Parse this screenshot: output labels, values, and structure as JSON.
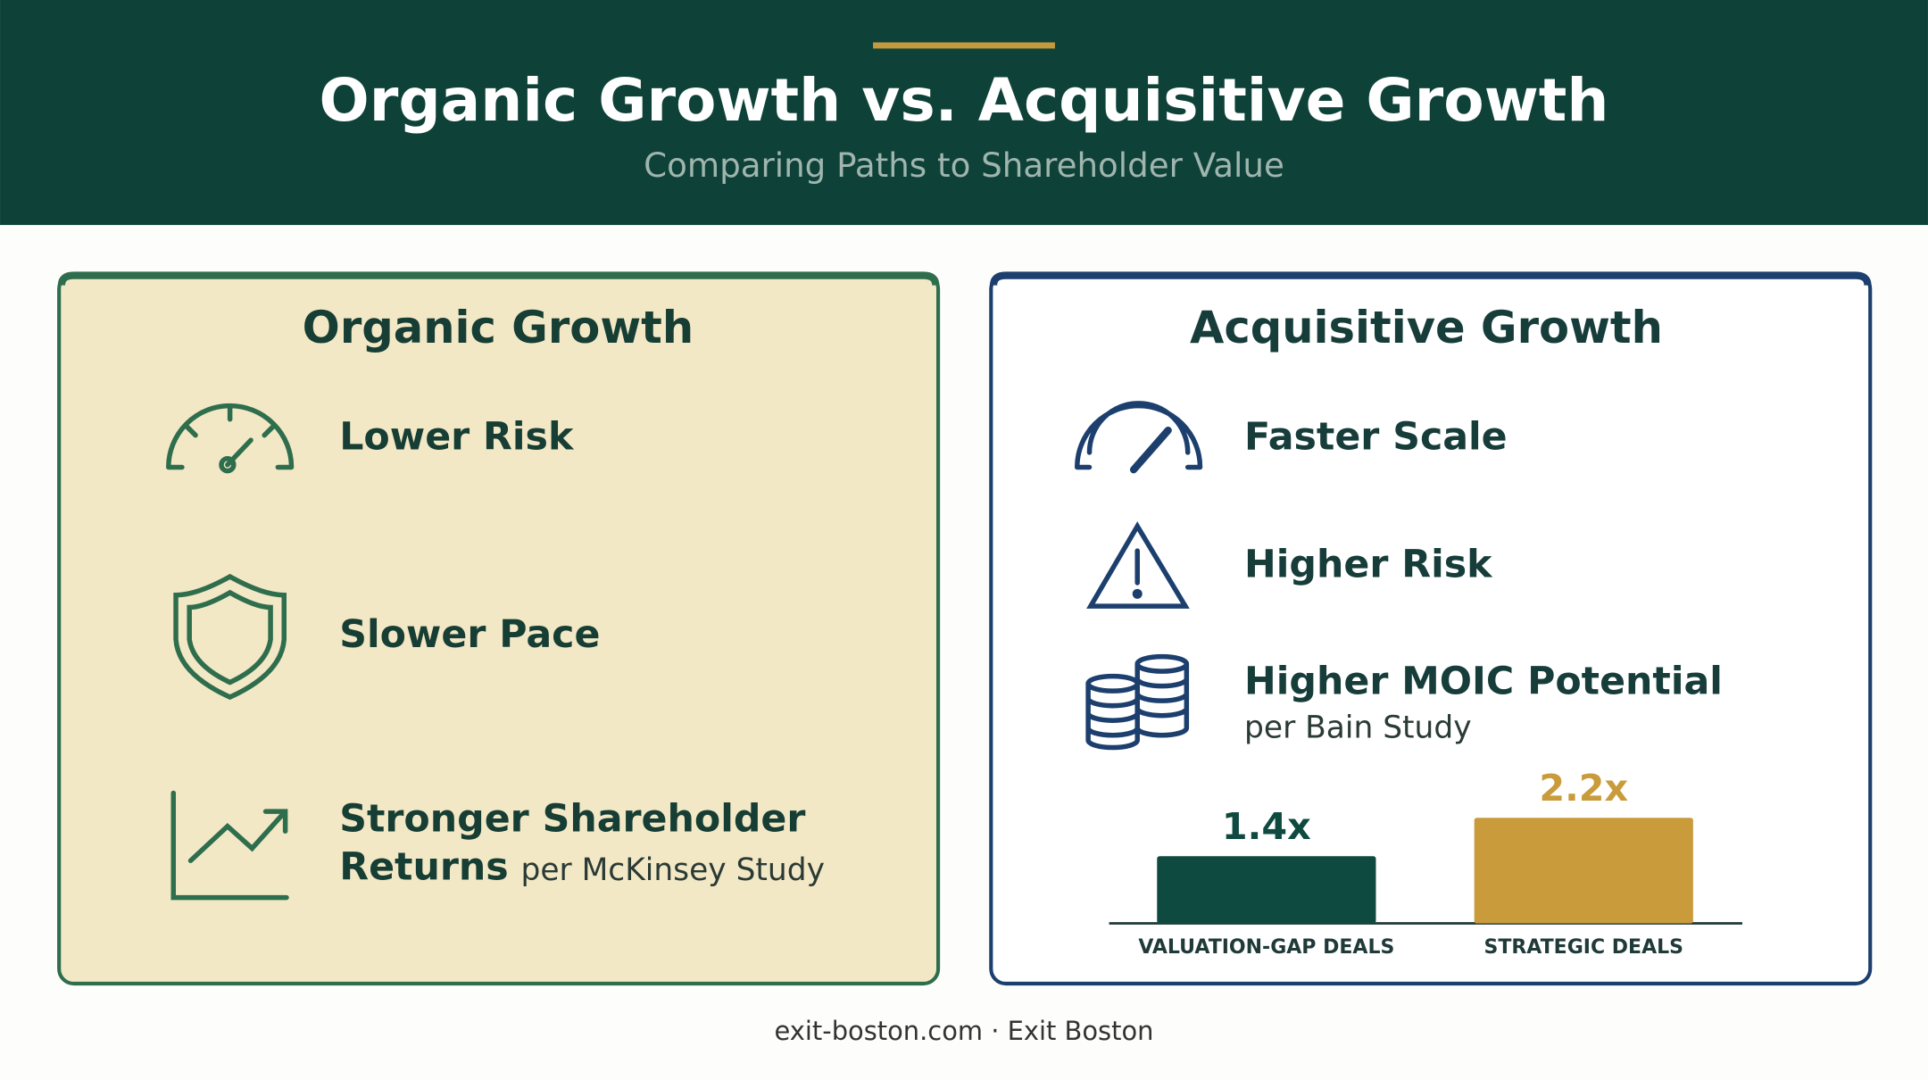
{
  "header": {
    "title": "Organic Growth vs. Acquisitive Growth",
    "subtitle": "Comparing Paths to Shareholder Value"
  },
  "panels": [
    {
      "title": "Organic Growth",
      "items": [
        {
          "label_lines": [
            "Lower Risk"
          ]
        },
        {
          "label_lines": [
            "Slower Pace"
          ]
        },
        {
          "label_lines": [
            "Stronger Shareholder",
            "Returns"
          ],
          "note": "per McKinsey Study"
        }
      ]
    },
    {
      "title": "Acquisitive Growth",
      "items": [
        {
          "label_lines": [
            "Faster Scale"
          ]
        },
        {
          "label_lines": [
            "Higher Risk"
          ]
        },
        {
          "label_lines": [
            "Higher MOIC Potential"
          ],
          "note": "per Bain Study"
        }
      ],
      "chart": {
        "type": "bar",
        "categories": [
          "VALUATION-GAP DEALS",
          "STRATEGIC DEALS"
        ],
        "values": [
          1.4,
          2.2
        ],
        "value_labels": [
          "1.4x",
          "2.2x"
        ],
        "colors": [
          "#0e4a3f",
          "#c99b3b"
        ]
      }
    }
  ],
  "footer": "exit-boston.com · Exit Boston"
}
